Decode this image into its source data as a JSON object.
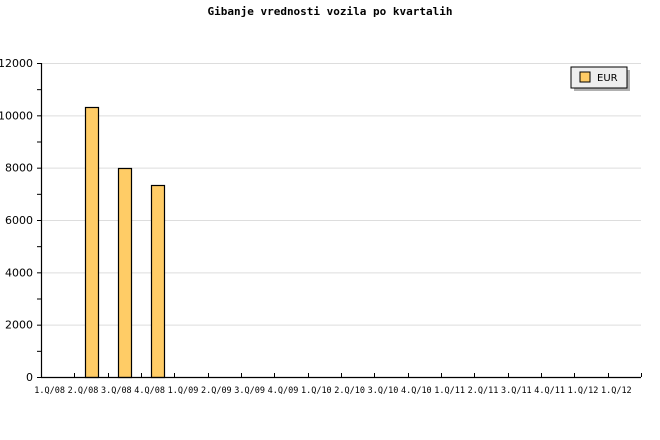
{
  "chart_data": {
    "type": "bar",
    "title": "Gibanje vrednosti vozila po kvartalih",
    "xlabel": "",
    "ylabel": "",
    "categories": [
      "1.Q/08",
      "2.Q/08",
      "3.Q/08",
      "4.Q/08",
      "1.Q/09",
      "2.Q/09",
      "3.Q/09",
      "4.Q/09",
      "1.Q/10",
      "2.Q/10",
      "3.Q/10",
      "4.Q/10",
      "1.Q/11",
      "2.Q/11",
      "3.Q/11",
      "4.Q/11",
      "1.Q/12",
      "1.Q/12"
    ],
    "series": [
      {
        "name": "EUR",
        "color": "#ffcc66",
        "values": [
          null,
          10300,
          8000,
          7340,
          null,
          null,
          null,
          null,
          null,
          null,
          null,
          null,
          null,
          null,
          null,
          null,
          null,
          null
        ]
      }
    ],
    "ylim": [
      0,
      12000
    ],
    "yticks": [
      0,
      2000,
      4000,
      6000,
      8000,
      10000,
      12000
    ],
    "grid": true,
    "legend": "top-right"
  }
}
